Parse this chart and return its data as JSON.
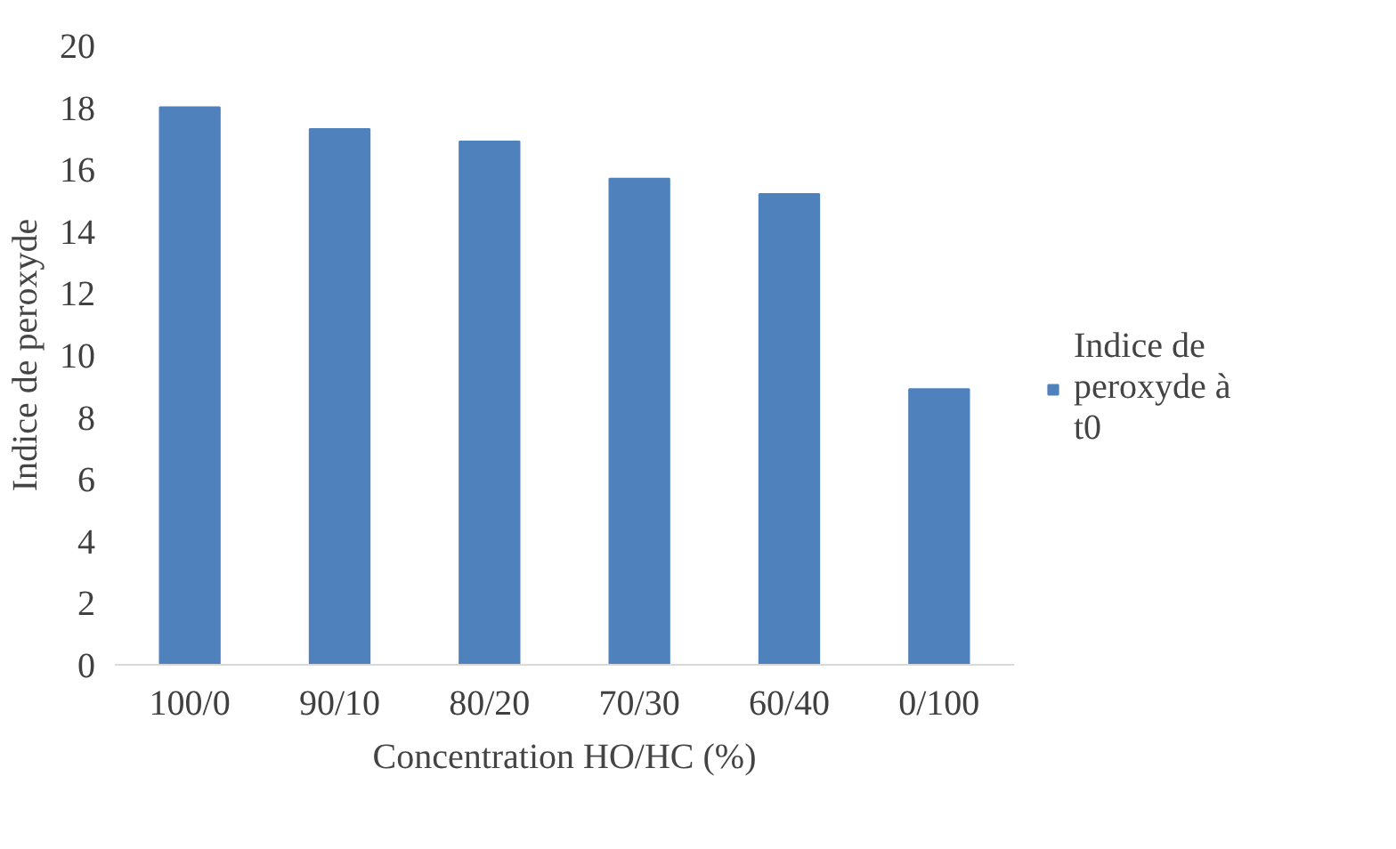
{
  "chart_data": {
    "type": "bar",
    "xlabel": "Concentration HO/HC (%)",
    "ylabel": "Indice de peroxyde",
    "categories": [
      "100/0",
      "90/10",
      "80/20",
      "70/30",
      "60/40",
      "0/100"
    ],
    "series": [
      {
        "name": "Indice de peroxyde à t0",
        "color": "#4f81bd",
        "values": [
          18.0,
          17.3,
          16.9,
          15.7,
          15.2,
          8.9
        ]
      }
    ],
    "ylim": [
      0,
      20
    ],
    "yticks": [
      0,
      2,
      4,
      6,
      8,
      10,
      12,
      14,
      16,
      18,
      20
    ],
    "grid": false,
    "legend": "right"
  }
}
